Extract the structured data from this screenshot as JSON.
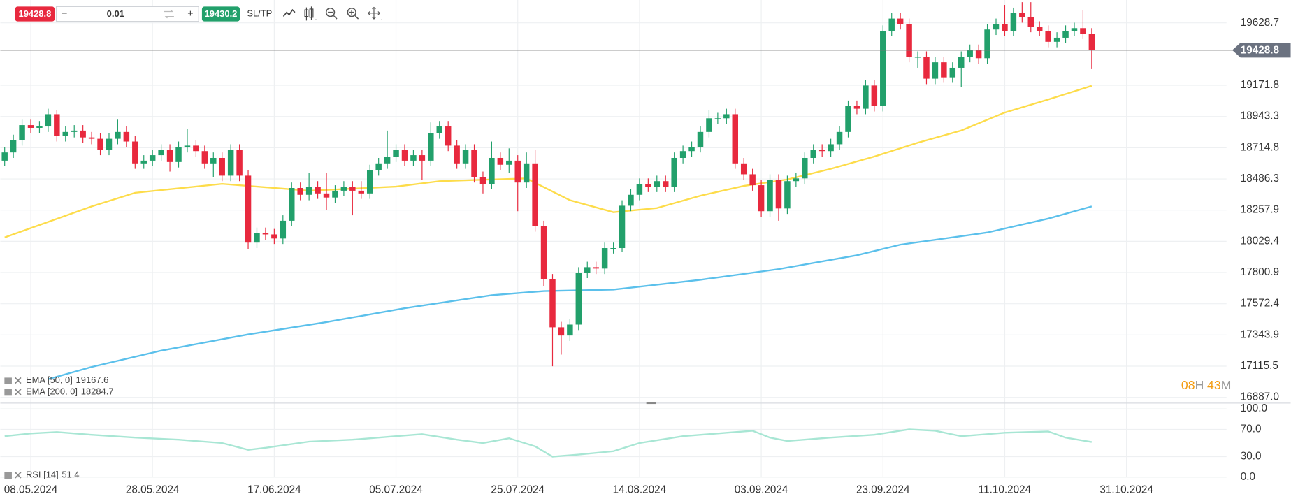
{
  "toolbar": {
    "minus": "−",
    "volume": "0.01",
    "plus": "+",
    "buy": 19430.2,
    "sltp": "SL/TP"
  },
  "chart_data": {
    "type": "candlestick",
    "up_color": "#22a06b",
    "down_color": "#e8293e",
    "current_price": 19428.8,
    "grid": true,
    "x": [
      0,
      1,
      2,
      3,
      4,
      5,
      6,
      7,
      8,
      9,
      10,
      11,
      12,
      13,
      14,
      15,
      16,
      17,
      18,
      19,
      20,
      21,
      22,
      23,
      24,
      25,
      26,
      27,
      28,
      29,
      30,
      31,
      32,
      33,
      34,
      35,
      36,
      37,
      38,
      39,
      40,
      41,
      42,
      43,
      44,
      45,
      46,
      47,
      48,
      49,
      50,
      51,
      52,
      53,
      54,
      55,
      56,
      57,
      58,
      59,
      60,
      61,
      62,
      63,
      64,
      65,
      66,
      67,
      68,
      69,
      70,
      71,
      72,
      73,
      74,
      75,
      76,
      77,
      78,
      79,
      80,
      81,
      82,
      83,
      84,
      85,
      86,
      87,
      88,
      89,
      90,
      91,
      92,
      93,
      94,
      95,
      96,
      97,
      98,
      99,
      100,
      101,
      102,
      103,
      104,
      105,
      106,
      107,
      108,
      109,
      110,
      111,
      112,
      113,
      114,
      115,
      116,
      117,
      118,
      119,
      120,
      121,
      122,
      123,
      124,
      125
    ],
    "open": [
      18620,
      18680,
      18770,
      18880,
      18860,
      18870,
      18960,
      18800,
      18830,
      18840,
      18790,
      18780,
      18700,
      18780,
      18830,
      18760,
      18600,
      18620,
      18660,
      18700,
      18610,
      18720,
      18730,
      18690,
      18600,
      18640,
      18510,
      18700,
      18510,
      18020,
      18090,
      18080,
      18050,
      18180,
      18420,
      18370,
      18430,
      18380,
      18350,
      18400,
      18430,
      18400,
      18380,
      18550,
      18600,
      18650,
      18700,
      18620,
      18660,
      18620,
      18820,
      18870,
      18730,
      18600,
      18700,
      18500,
      18450,
      18640,
      18590,
      18620,
      18460,
      18600,
      18140,
      17750,
      17400,
      17340,
      17420,
      17800,
      17840,
      17830,
      17980,
      17980,
      18290,
      18370,
      18450,
      18430,
      18470,
      18430,
      18640,
      18690,
      18720,
      18830,
      18930,
      18930,
      18960,
      18600,
      18520,
      18440,
      18250,
      18480,
      18270,
      18470,
      18490,
      18640,
      18700,
      18690,
      18740,
      18830,
      19020,
      19000,
      19170,
      19020,
      19570,
      19660,
      19620,
      19380,
      19380,
      19220,
      19340,
      19230,
      19300,
      19380,
      19430,
      19370,
      19580,
      19620,
      19570,
      19700,
      19670,
      19600,
      19570,
      19490,
      19520,
      19570,
      19590,
      19550
    ],
    "high": [
      18720,
      18810,
      18920,
      18920,
      18910,
      19000,
      18990,
      18870,
      18880,
      18880,
      18830,
      18820,
      18820,
      18920,
      18870,
      18800,
      18660,
      18700,
      18740,
      18740,
      18760,
      18850,
      18770,
      18730,
      18680,
      18680,
      18740,
      18740,
      18550,
      18130,
      18130,
      18120,
      18220,
      18460,
      18460,
      18530,
      18470,
      18530,
      18440,
      18470,
      18470,
      18470,
      18590,
      18640,
      18840,
      18740,
      18740,
      18700,
      18700,
      18900,
      18910,
      18910,
      18770,
      18740,
      18740,
      18540,
      18760,
      18680,
      18710,
      18660,
      18680,
      18700,
      18180,
      17790,
      17440,
      17460,
      17840,
      17880,
      17880,
      18020,
      18020,
      18330,
      18410,
      18490,
      18490,
      18510,
      18510,
      18680,
      18730,
      18760,
      18870,
      18990,
      18970,
      19000,
      19000,
      18640,
      18560,
      18480,
      18520,
      18520,
      18510,
      18530,
      18680,
      18740,
      18740,
      18780,
      18870,
      19060,
      19060,
      19210,
      19210,
      19610,
      19700,
      19700,
      19660,
      19420,
      19420,
      19380,
      19380,
      19340,
      19420,
      19470,
      19470,
      19620,
      19660,
      19760,
      19740,
      19780,
      19780,
      19640,
      19610,
      19560,
      19610,
      19630,
      19720,
      19590
    ],
    "low": [
      18580,
      18640,
      18730,
      18820,
      18820,
      18830,
      18760,
      18760,
      18790,
      18750,
      18740,
      18660,
      18660,
      18740,
      18720,
      18560,
      18560,
      18580,
      18620,
      18540,
      18570,
      18680,
      18650,
      18560,
      18500,
      18470,
      18470,
      18470,
      17970,
      17980,
      18040,
      18010,
      18010,
      18140,
      18330,
      18330,
      18340,
      18260,
      18310,
      18360,
      18220,
      18340,
      18340,
      18510,
      18560,
      18610,
      18580,
      18580,
      18480,
      18580,
      18780,
      18690,
      18560,
      18560,
      18460,
      18380,
      18410,
      18550,
      18530,
      18250,
      18420,
      18100,
      17700,
      17115,
      17200,
      17300,
      17380,
      17760,
      17790,
      17790,
      17940,
      17950,
      18250,
      18330,
      18390,
      18390,
      18390,
      18390,
      18600,
      18650,
      18680,
      18790,
      18890,
      18890,
      18560,
      18480,
      18400,
      18210,
      18210,
      18180,
      18230,
      18430,
      18450,
      18600,
      18650,
      18650,
      18700,
      18790,
      18960,
      18960,
      18980,
      18980,
      19530,
      19580,
      19340,
      19300,
      19180,
      19180,
      19190,
      19190,
      19160,
      19340,
      19330,
      19330,
      19540,
      19530,
      19530,
      19630,
      19560,
      19530,
      19450,
      19450,
      19480,
      19530,
      19510,
      19290
    ],
    "close": [
      18680,
      18770,
      18880,
      18860,
      18870,
      18960,
      18800,
      18830,
      18840,
      18790,
      18780,
      18700,
      18780,
      18830,
      18760,
      18600,
      18620,
      18660,
      18700,
      18610,
      18720,
      18730,
      18690,
      18600,
      18640,
      18510,
      18700,
      18510,
      18020,
      18090,
      18080,
      18050,
      18180,
      18420,
      18370,
      18430,
      18380,
      18350,
      18400,
      18430,
      18400,
      18380,
      18550,
      18600,
      18650,
      18700,
      18620,
      18660,
      18620,
      18820,
      18870,
      18730,
      18600,
      18700,
      18500,
      18450,
      18640,
      18590,
      18620,
      18460,
      18600,
      18140,
      17750,
      17400,
      17340,
      17420,
      17800,
      17840,
      17830,
      17980,
      17980,
      18290,
      18370,
      18450,
      18430,
      18470,
      18430,
      18640,
      18690,
      18720,
      18830,
      18930,
      18930,
      18960,
      18600,
      18520,
      18440,
      18250,
      18480,
      18270,
      18470,
      18490,
      18640,
      18700,
      18690,
      18740,
      18830,
      19020,
      19000,
      19170,
      19020,
      19570,
      19660,
      19620,
      19380,
      19380,
      19220,
      19340,
      19230,
      19300,
      19380,
      19430,
      19370,
      19580,
      19620,
      19570,
      19700,
      19670,
      19600,
      19570,
      19490,
      19520,
      19570,
      19590,
      19550,
      19428.8
    ],
    "xlim": [
      -0.5,
      140.5
    ],
    "xticks": [
      {
        "value": 3,
        "label": "08.05.2024"
      },
      {
        "value": 17,
        "label": "28.05.2024"
      },
      {
        "value": 31,
        "label": "17.06.2024"
      },
      {
        "value": 45,
        "label": "05.07.2024"
      },
      {
        "value": 59,
        "label": "25.07.2024"
      },
      {
        "value": 73,
        "label": "14.08.2024"
      },
      {
        "value": 87,
        "label": "03.09.2024"
      },
      {
        "value": 101,
        "label": "23.09.2024"
      },
      {
        "value": 115,
        "label": "11.10.2024"
      },
      {
        "value": 129,
        "label": "31.10.2024"
      }
    ],
    "ylim": [
      16845,
      19796
    ],
    "yticks": [
      19628.7,
      19171.8,
      18943.3,
      18714.8,
      18486.3,
      18257.9,
      18029.4,
      17800.9,
      17572.4,
      17343.9,
      17115.5,
      {
        "value": 16887,
        "label": "16887.0"
      }
    ],
    "indicators": [
      {
        "name": "EMA [50, 0]",
        "color": "#fddc4a",
        "x": [
          0,
          10,
          15,
          25,
          35,
          45,
          50,
          55,
          60,
          65,
          70,
          75,
          80,
          85,
          90,
          95,
          100,
          105,
          110,
          115,
          120,
          125
        ],
        "values": [
          18058,
          18285,
          18385,
          18450,
          18400,
          18430,
          18470,
          18480,
          18490,
          18330,
          18243,
          18273,
          18363,
          18435,
          18482,
          18560,
          18650,
          18751,
          18841,
          18972,
          19068,
          19167.6
        ]
      },
      {
        "name": "EMA [200, 0]",
        "color": "#5bc0eb",
        "x": [
          5,
          10,
          18,
          28,
          37,
          46,
          56,
          62,
          70,
          80,
          89,
          98,
          103,
          113,
          120,
          125
        ],
        "values": [
          17020,
          17110,
          17229,
          17348,
          17438,
          17540,
          17635,
          17665,
          17676,
          17748,
          17826,
          17927,
          18005,
          18094,
          18196,
          18284.7
        ]
      }
    ],
    "rsi": {
      "name": "RSI [14]",
      "color": "#a8e6d4",
      "ylim": [
        0,
        100
      ],
      "yticks": [
        {
          "value": 100,
          "label": "100.0"
        },
        {
          "value": 70,
          "label": "70.0"
        },
        {
          "value": 30,
          "label": "30.0"
        },
        {
          "value": 0,
          "label": "0.0"
        }
      ],
      "x": [
        0,
        3,
        6,
        10,
        15,
        20,
        25,
        28,
        30,
        35,
        40,
        45,
        48,
        52,
        55,
        58,
        61,
        63,
        66,
        70,
        73,
        78,
        83,
        86,
        88,
        90,
        95,
        100,
        104,
        107,
        110,
        115,
        120,
        122,
        125
      ],
      "values": [
        60,
        64,
        66,
        62,
        58,
        55,
        50,
        40,
        43,
        52,
        55,
        60,
        63,
        55,
        50,
        57,
        45,
        30,
        33,
        38,
        50,
        60,
        65,
        68,
        58,
        53,
        58,
        62,
        70,
        68,
        60,
        65,
        67,
        58,
        51.4
      ]
    },
    "countdown": {
      "hours": "08",
      "h": "H",
      "minutes": "43",
      "m": "M"
    }
  }
}
